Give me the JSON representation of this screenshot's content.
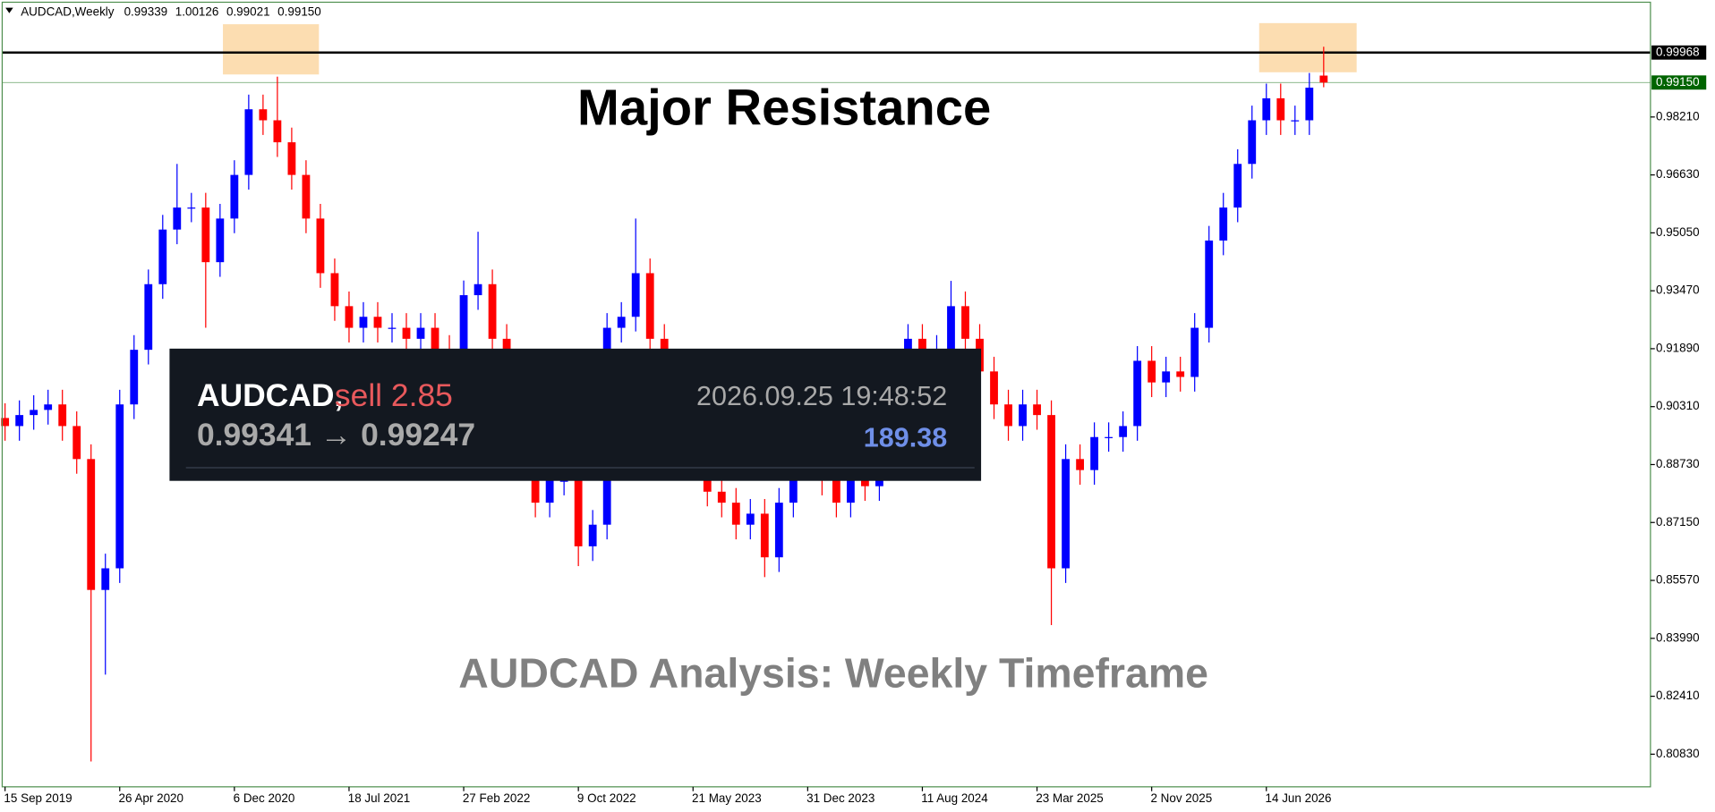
{
  "chart_data": {
    "type": "candlestick",
    "header": {
      "symbol": "AUDCAD,Weekly",
      "ohlc": [
        "0.99339",
        "1.00126",
        "0.99021",
        "0.99150"
      ]
    },
    "annotations": {
      "main": "Major Resistance",
      "footer": "AUDCAD Analysis: Weekly Timeframe"
    },
    "trade_panel": {
      "symbol": "AUDCAD,",
      "action": "sell 2.85",
      "time": "2026.09.25 19:48:52",
      "prices": "0.99341 → 0.99247",
      "profit": "189.38"
    },
    "up_color": "#0000ff",
    "down_color": "#ff0000",
    "open": [
      0.9,
      0.8978,
      0.9008,
      0.9022,
      0.9037,
      0.8978,
      0.8888,
      0.8531,
      0.859,
      0.9037,
      0.9186,
      0.9365,
      0.9514,
      0.9574,
      0.9574,
      0.9425,
      0.9544,
      0.9663,
      0.9842,
      0.9812,
      0.9752,
      0.9663,
      0.9544,
      0.9395,
      0.9305,
      0.9246,
      0.9276,
      0.9246,
      0.9246,
      0.9216,
      0.9246,
      0.9186,
      0.9156,
      0.9335,
      0.9365,
      0.9216,
      0.9067,
      0.8888,
      0.8769,
      0.8829,
      0.8829,
      0.865,
      0.8709,
      0.9246,
      0.9276,
      0.9395,
      0.9216,
      0.9097,
      0.9008,
      0.8888,
      0.8799,
      0.8769,
      0.8709,
      0.8739,
      0.862,
      0.8769,
      0.8888,
      0.8948,
      0.8829,
      0.8769,
      0.8829,
      0.8814,
      0.8888,
      0.9008,
      0.9216,
      0.9156,
      0.9186,
      0.9305,
      0.9216,
      0.9127,
      0.9037,
      0.8978,
      0.9037,
      0.9008,
      0.859,
      0.8888,
      0.8858,
      0.8948,
      0.8948,
      0.8978,
      0.9156,
      0.9097,
      0.9127,
      0.9112,
      0.9246,
      0.9484,
      0.9574,
      0.9693,
      0.9812,
      0.9872,
      0.9812,
      0.9812,
      0.99339
    ],
    "high": [
      0.904,
      0.9048,
      0.9062,
      0.9077,
      0.9077,
      0.9018,
      0.8928,
      0.863,
      0.9077,
      0.9226,
      0.9405,
      0.9554,
      0.9693,
      0.9614,
      0.9614,
      0.9584,
      0.9703,
      0.9882,
      0.9882,
      0.9931,
      0.9792,
      0.9703,
      0.9584,
      0.9435,
      0.9345,
      0.9316,
      0.9316,
      0.9286,
      0.9286,
      0.9286,
      0.9286,
      0.9226,
      0.9375,
      0.9508,
      0.9405,
      0.9256,
      0.9107,
      0.8928,
      0.8869,
      0.8869,
      0.8869,
      0.8749,
      0.9286,
      0.9316,
      0.9544,
      0.9435,
      0.9256,
      0.9137,
      0.9048,
      0.8928,
      0.8839,
      0.8809,
      0.8779,
      0.8779,
      0.8809,
      0.8928,
      0.8988,
      0.8988,
      0.8869,
      0.8869,
      0.8869,
      0.8928,
      0.9048,
      0.9256,
      0.9256,
      0.9226,
      0.9374,
      0.9345,
      0.9256,
      0.9167,
      0.9077,
      0.9077,
      0.9077,
      0.9048,
      0.8928,
      0.8928,
      0.8988,
      0.8988,
      0.9018,
      0.9196,
      0.9196,
      0.9167,
      0.9167,
      0.9286,
      0.9524,
      0.9614,
      0.9733,
      0.9852,
      0.9912,
      0.9912,
      0.9852,
      0.9941,
      1.00126
    ],
    "low": [
      0.8938,
      0.8938,
      0.8968,
      0.8982,
      0.8938,
      0.8848,
      0.8063,
      0.83,
      0.855,
      0.8997,
      0.9146,
      0.9325,
      0.9474,
      0.9534,
      0.9246,
      0.9385,
      0.9504,
      0.9623,
      0.9772,
      0.9712,
      0.9623,
      0.9504,
      0.9355,
      0.9265,
      0.9206,
      0.9206,
      0.9206,
      0.9206,
      0.9176,
      0.9176,
      0.9146,
      0.9116,
      0.9116,
      0.9295,
      0.9176,
      0.9027,
      0.8848,
      0.8729,
      0.8729,
      0.8789,
      0.8596,
      0.861,
      0.8669,
      0.9206,
      0.9236,
      0.9176,
      0.9057,
      0.8968,
      0.8848,
      0.8759,
      0.8729,
      0.8669,
      0.8669,
      0.8566,
      0.858,
      0.8729,
      0.8848,
      0.8789,
      0.8729,
      0.8729,
      0.8774,
      0.8774,
      0.8848,
      0.8968,
      0.9116,
      0.9116,
      0.9146,
      0.9176,
      0.9087,
      0.8997,
      0.8938,
      0.8938,
      0.8968,
      0.8435,
      0.855,
      0.8818,
      0.8818,
      0.8908,
      0.8908,
      0.8938,
      0.9057,
      0.9057,
      0.9072,
      0.9072,
      0.9206,
      0.9444,
      0.9534,
      0.9653,
      0.9772,
      0.9772,
      0.9772,
      0.9772,
      0.99021
    ],
    "close": [
      0.8978,
      0.9008,
      0.9022,
      0.9037,
      0.8978,
      0.8888,
      0.8531,
      0.859,
      0.9037,
      0.9186,
      0.9365,
      0.9514,
      0.9574,
      0.9574,
      0.9425,
      0.9544,
      0.9663,
      0.9842,
      0.9812,
      0.9752,
      0.9663,
      0.9544,
      0.9395,
      0.9305,
      0.9246,
      0.9276,
      0.9246,
      0.9246,
      0.9216,
      0.9246,
      0.9186,
      0.9156,
      0.9335,
      0.9365,
      0.9216,
      0.9067,
      0.8888,
      0.8769,
      0.8829,
      0.8829,
      0.865,
      0.8709,
      0.9246,
      0.9276,
      0.9395,
      0.9216,
      0.9097,
      0.9008,
      0.8888,
      0.8799,
      0.8769,
      0.8709,
      0.8739,
      0.862,
      0.8769,
      0.8888,
      0.8948,
      0.8829,
      0.8769,
      0.8829,
      0.8814,
      0.8888,
      0.9008,
      0.9216,
      0.9156,
      0.9186,
      0.9305,
      0.9216,
      0.9127,
      0.9037,
      0.8978,
      0.9037,
      0.9008,
      0.859,
      0.8888,
      0.8858,
      0.8948,
      0.8948,
      0.8978,
      0.9156,
      0.9097,
      0.9127,
      0.9112,
      0.9246,
      0.9484,
      0.9574,
      0.9693,
      0.9812,
      0.9872,
      0.9812,
      0.9812,
      0.9901,
      0.9915
    ],
    "xlim": [
      -0.2,
      114.8
    ],
    "xticks": [
      {
        "value": 0,
        "label": "15 Sep 2019"
      },
      {
        "value": 8,
        "label": "26 Apr 2020"
      },
      {
        "value": 16,
        "label": "6 Dec 2020"
      },
      {
        "value": 24,
        "label": "18 Jul 2021"
      },
      {
        "value": 32,
        "label": "27 Feb 2022"
      },
      {
        "value": 40,
        "label": "9 Oct 2022"
      },
      {
        "value": 48,
        "label": "21 May 2023"
      },
      {
        "value": 56,
        "label": "31 Dec 2023"
      },
      {
        "value": 64,
        "label": "11 Aug 2024"
      },
      {
        "value": 72,
        "label": "23 Mar 2025"
      },
      {
        "value": 80,
        "label": "2 Nov 2025"
      },
      {
        "value": 88,
        "label": "14 Jun 2026"
      }
    ],
    "ylim": [
      0.7994,
      1.0134
    ],
    "yticks": [
      {
        "value": 0.8083,
        "label": "0.80830"
      },
      {
        "value": 0.8241,
        "label": "0.82410"
      },
      {
        "value": 0.8399,
        "label": "0.83990"
      },
      {
        "value": 0.8557,
        "label": "0.85570"
      },
      {
        "value": 0.8715,
        "label": "0.87150"
      },
      {
        "value": 0.8873,
        "label": "0.88730"
      },
      {
        "value": 0.9031,
        "label": "0.90310"
      },
      {
        "value": 0.9189,
        "label": "0.91890"
      },
      {
        "value": 0.9347,
        "label": "0.93470"
      },
      {
        "value": 0.9505,
        "label": "0.95050"
      },
      {
        "value": 0.9663,
        "label": "0.96630"
      },
      {
        "value": 0.9821,
        "label": "0.98210"
      }
    ],
    "levels": [
      {
        "value": 0.99968,
        "label": "0.99968",
        "color": "#000000"
      },
      {
        "value": 0.9915,
        "label": "0.99150",
        "color": "#006400"
      }
    ],
    "zones": [
      {
        "x": [
          15.2,
          21.9
        ],
        "y": [
          0.9937,
          1.0074
        ]
      },
      {
        "x": [
          87.5,
          94.3
        ],
        "y": [
          0.9943,
          1.0077
        ]
      }
    ],
    "zone_color": "#fcd9a8",
    "grid": false
  }
}
